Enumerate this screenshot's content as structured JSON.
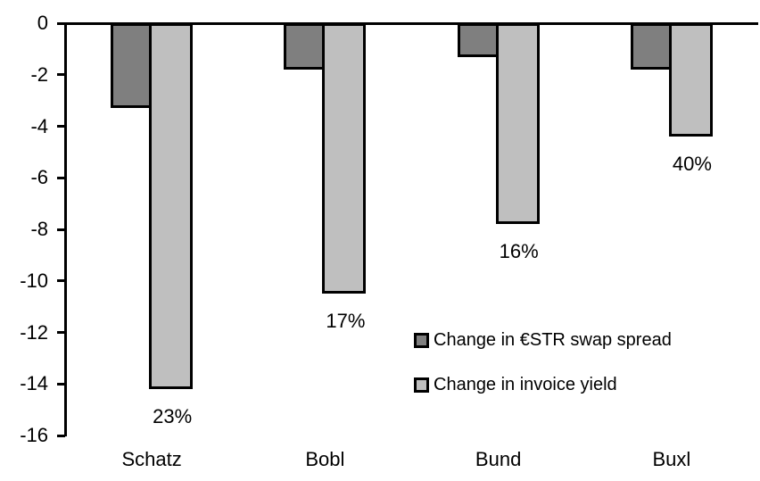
{
  "chart_data": {
    "type": "bar",
    "orientation": "vertical-grouped",
    "title": "",
    "xlabel": "",
    "ylabel": "",
    "grid": false,
    "background": "#ffffff",
    "bar_border_color": "#000000",
    "categories": [
      "Schatz",
      "Bobl",
      "Bund",
      "Buxl"
    ],
    "series": [
      {
        "name": "Change in €STR swap spread",
        "color": "#7f7f7f",
        "values": [
          -3.3,
          -1.8,
          -1.3,
          -1.8
        ]
      },
      {
        "name": "Change in invoice yield",
        "color": "#bfbfbf",
        "values": [
          -14.2,
          -10.5,
          -7.8,
          -4.4
        ]
      }
    ],
    "data_labels": {
      "attached_to_series": "Change in invoice yield",
      "position": "below-bar",
      "values": [
        "23%",
        "17%",
        "16%",
        "40%"
      ]
    },
    "yaxis": {
      "min": -16,
      "max": 0,
      "tick_step": 2,
      "ticks": [
        0,
        -2,
        -4,
        -6,
        -8,
        -10,
        -12,
        -14,
        -16
      ]
    },
    "legend": {
      "position": "inside-plot-right",
      "marker_shape": "square"
    }
  }
}
